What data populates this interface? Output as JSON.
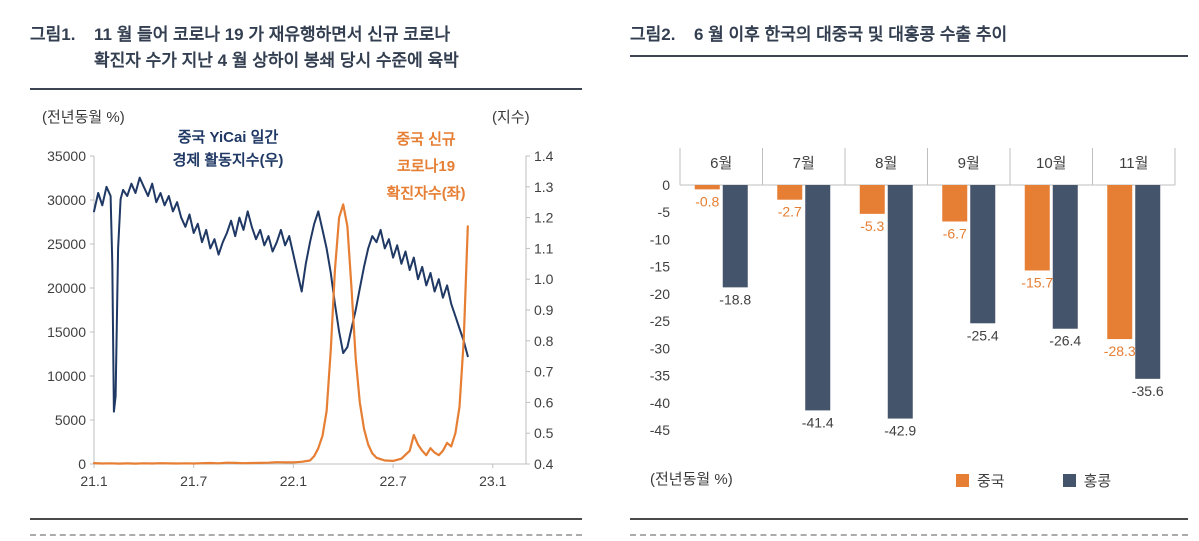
{
  "colors": {
    "orange": "#E67E33",
    "navy_line": "#1F3864",
    "navy_bar": "#44546A",
    "title_text": "#333F50",
    "axis_text": "#404040",
    "axis_line": "#BFBFBF"
  },
  "figure1": {
    "label": "그림1.",
    "title_lines": [
      "11 월 들어 코로나 19 가 재유행하면서 신규 코로나",
      "확진자 수가 지난 4 월 상하이 봉쇄 당시 수준에 육박"
    ],
    "left_axis_unit": "(전년동월 %)",
    "right_axis_unit": "(지수)",
    "annotation_index": [
      "중국 YiCai 일간",
      "경제 활동지수(우)"
    ],
    "annotation_cases": [
      "중국 신규",
      "코로나19",
      "확진자수(좌)"
    ]
  },
  "figure2": {
    "label": "그림2.",
    "title": "6 월 이후 한국의 대중국 및 대홍콩 수출 추이",
    "axis_unit": "(전년동월 %)",
    "legend": [
      {
        "label": "중국"
      },
      {
        "label": "홍콩"
      }
    ]
  },
  "chart_data": [
    {
      "type": "line",
      "title": "11월 들어 코로나19가 재유행하면서 신규 코로나 확진자 수가 지난 4월 상하이 봉쇄 당시 수준에 육박",
      "x_range": [
        0,
        26
      ],
      "x_ticks": {
        "positions": [
          0,
          6,
          12,
          18,
          24
        ],
        "labels": [
          "21.1",
          "21.7",
          "22.1",
          "22.7",
          "23.1"
        ]
      },
      "left_axis": {
        "label": "(전년동월 %)",
        "min": 0,
        "max": 35000,
        "step": 5000
      },
      "right_axis": {
        "label": "(지수)",
        "min": 0.4,
        "max": 1.4,
        "step": 0.1
      },
      "series": [
        {
          "name": "중국 YiCai 일간 경제 활동지수(우)",
          "axis": "right",
          "color": "#1F3864",
          "stroke_width": 2,
          "x": [
            0,
            0.25,
            0.5,
            0.75,
            1,
            1.1,
            1.2,
            1.3,
            1.45,
            1.6,
            1.75,
            2,
            2.25,
            2.5,
            2.75,
            3,
            3.25,
            3.5,
            3.75,
            4,
            4.25,
            4.5,
            4.75,
            5,
            5.25,
            5.5,
            5.75,
            6,
            6.25,
            6.5,
            6.75,
            7,
            7.25,
            7.5,
            7.75,
            8,
            8.25,
            8.5,
            8.75,
            9,
            9.25,
            9.5,
            9.75,
            10,
            10.25,
            10.5,
            10.75,
            11,
            11.25,
            11.5,
            11.75,
            12,
            12.25,
            12.5,
            12.75,
            13,
            13.25,
            13.5,
            13.75,
            14,
            14.25,
            14.5,
            14.75,
            15,
            15.25,
            15.5,
            15.75,
            16,
            16.25,
            16.5,
            16.75,
            17,
            17.25,
            17.5,
            17.75,
            18,
            18.25,
            18.5,
            18.75,
            19,
            19.25,
            19.5,
            19.75,
            20,
            20.25,
            20.5,
            20.75,
            21,
            21.25,
            21.5,
            21.75,
            22,
            22.25,
            22.5
          ],
          "y": [
            1.22,
            1.28,
            1.24,
            1.3,
            1.27,
            1.05,
            0.57,
            0.62,
            1.1,
            1.26,
            1.29,
            1.27,
            1.31,
            1.28,
            1.33,
            1.3,
            1.27,
            1.31,
            1.25,
            1.28,
            1.24,
            1.27,
            1.22,
            1.25,
            1.2,
            1.17,
            1.21,
            1.15,
            1.18,
            1.12,
            1.16,
            1.1,
            1.13,
            1.08,
            1.12,
            1.15,
            1.19,
            1.14,
            1.2,
            1.16,
            1.22,
            1.17,
            1.13,
            1.16,
            1.11,
            1.14,
            1.09,
            1.12,
            1.16,
            1.11,
            1.14,
            1.08,
            1.02,
            0.96,
            1.05,
            1.12,
            1.18,
            1.22,
            1.16,
            1.1,
            1.02,
            0.92,
            0.83,
            0.76,
            0.78,
            0.84,
            0.9,
            0.97,
            1.04,
            1.1,
            1.14,
            1.12,
            1.16,
            1.1,
            1.13,
            1.07,
            1.11,
            1.05,
            1.09,
            1.03,
            1.07,
            1,
            1.04,
            0.98,
            1.02,
            0.96,
            1,
            0.94,
            0.98,
            0.92,
            0.88,
            0.84,
            0.8,
            0.75
          ]
        },
        {
          "name": "중국 신규 코로나19 확진자수(좌)",
          "axis": "left",
          "color": "#E67E33",
          "stroke_width": 2.2,
          "x": [
            0,
            0.5,
            1,
            1.5,
            2,
            2.5,
            3,
            3.5,
            4,
            4.5,
            5,
            5.5,
            6,
            6.5,
            7,
            7.5,
            8,
            8.5,
            9,
            9.5,
            10,
            10.5,
            11,
            11.5,
            12,
            12.5,
            13,
            13.25,
            13.5,
            13.75,
            14,
            14.25,
            14.5,
            14.75,
            15,
            15.25,
            15.5,
            15.75,
            16,
            16.25,
            16.5,
            16.75,
            17,
            17.5,
            18,
            18.5,
            19,
            19.25,
            19.5,
            19.75,
            20,
            20.25,
            20.5,
            20.75,
            21,
            21.25,
            21.5,
            21.75,
            22,
            22.25,
            22.5
          ],
          "y": [
            100,
            60,
            80,
            40,
            70,
            50,
            80,
            60,
            90,
            70,
            60,
            80,
            60,
            90,
            110,
            80,
            150,
            120,
            90,
            110,
            120,
            150,
            200,
            180,
            180,
            250,
            400,
            900,
            1800,
            3200,
            6000,
            13000,
            22000,
            28000,
            29500,
            27000,
            20000,
            12000,
            7000,
            4000,
            2200,
            1200,
            700,
            400,
            350,
            600,
            1500,
            3300,
            2200,
            1500,
            1000,
            1800,
            1300,
            1000,
            1500,
            2400,
            2000,
            3500,
            6500,
            14000,
            27000
          ]
        }
      ]
    },
    {
      "type": "bar",
      "title": "6월 이후 한국의 대중국 및 대홍콩 수출 추이",
      "categories": [
        "6월",
        "7월",
        "8월",
        "9월",
        "10월",
        "11월"
      ],
      "series": [
        {
          "name": "중국",
          "color": "#E67E33",
          "values": [
            -0.8,
            -2.7,
            -5.3,
            -6.7,
            -15.7,
            -28.3
          ]
        },
        {
          "name": "홍콩",
          "color": "#44546A",
          "values": [
            -18.8,
            -41.4,
            -42.9,
            -25.4,
            -26.4,
            -35.6
          ]
        }
      ],
      "ylim": [
        -45,
        0
      ],
      "ytick_step": 5,
      "ylabel": "(전년동월 %)",
      "legend_position": "bottom-right",
      "grid": false
    }
  ]
}
